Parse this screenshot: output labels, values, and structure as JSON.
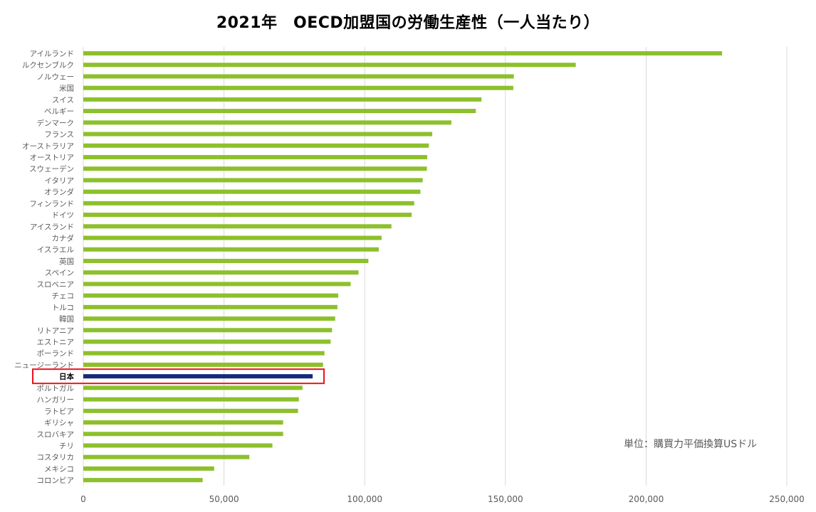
{
  "chart_data": {
    "type": "bar",
    "orientation": "horizontal",
    "title": "2021年　OECD加盟国の労働生産性（一人当たり）",
    "unit_note": "単位：購買力平価換算USドル",
    "categories": [
      "アイルランド",
      "ルクセンブルク",
      "ノルウェー",
      "米国",
      "スイス",
      "ベルギー",
      "デンマーク",
      "フランス",
      "オーストラリア",
      "オーストリア",
      "スウェーデン",
      "イタリア",
      "オランダ",
      "フィンランド",
      "ドイツ",
      "アイスランド",
      "カナダ",
      "イスラエル",
      "英国",
      "スペイン",
      "スロベニア",
      "チェコ",
      "トルコ",
      "韓国",
      "リトアニア",
      "エストニア",
      "ポーランド",
      "ニュージーランド",
      "日本",
      "ポルトガル",
      "ハンガリー",
      "ラトビア",
      "ギリシャ",
      "スロバキア",
      "チリ",
      "コスタリカ",
      "メキシコ",
      "コロンビア"
    ],
    "values": [
      227000,
      175000,
      153000,
      152800,
      141500,
      139500,
      130800,
      124000,
      122800,
      122200,
      122100,
      120600,
      119800,
      117600,
      116700,
      109500,
      106000,
      105000,
      101300,
      97800,
      95000,
      90600,
      90300,
      89500,
      88400,
      87900,
      85700,
      85200,
      81500,
      77900,
      76600,
      76300,
      71000,
      71000,
      67200,
      59000,
      46500,
      42400
    ],
    "highlight": "日本",
    "colors": {
      "bar": "#8dc02c",
      "highlight_bar": "#142a7b",
      "highlight_box": "#e8141e",
      "grid": "#d9d9d9"
    },
    "xlim": [
      0,
      250000
    ],
    "xticks": [
      "0",
      "50,000",
      "100,000",
      "150,000",
      "200,000",
      "250,000"
    ],
    "xtick_values": [
      0,
      50000,
      100000,
      150000,
      200000,
      250000
    ],
    "grid": true,
    "legend": "none"
  }
}
